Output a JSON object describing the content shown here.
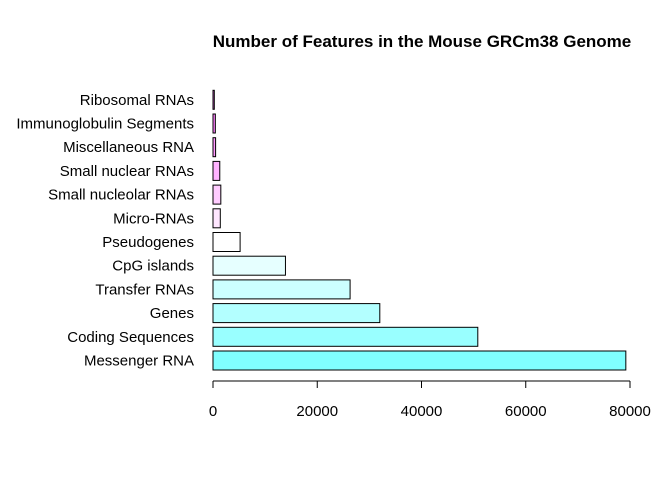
{
  "chart_data": {
    "type": "bar",
    "orientation": "horizontal",
    "title": "Number of Features in the Mouse GRCm38 Genome",
    "xlabel": "",
    "ylabel": "",
    "xlim": [
      0,
      80000
    ],
    "x_ticks": [
      "0",
      "20000",
      "40000",
      "60000",
      "80000"
    ],
    "grid": false,
    "legend": "none",
    "categories": [
      "Messenger RNA",
      "Coding Sequences",
      "Genes",
      "Transfer RNAs",
      "CpG islands",
      "Pseudogenes",
      "Micro-RNAs",
      "Small nucleolar RNAs",
      "Small nuclear RNAs",
      "Miscellaneous RNA",
      "Immunoglobulin Segments",
      "Ribosomal RNAs"
    ],
    "values": [
      79200,
      50800,
      32000,
      26300,
      13900,
      5200,
      1400,
      1500,
      1300,
      500,
      450,
      250
    ],
    "colors": [
      "#80ffff",
      "#99ffff",
      "#b3ffff",
      "#ccffff",
      "#e6ffff",
      "#ffffff",
      "#ffe6ff",
      "#ffccff",
      "#ffb3ff",
      "#ff99ff",
      "#ff80ff",
      "#ff66ff"
    ]
  }
}
